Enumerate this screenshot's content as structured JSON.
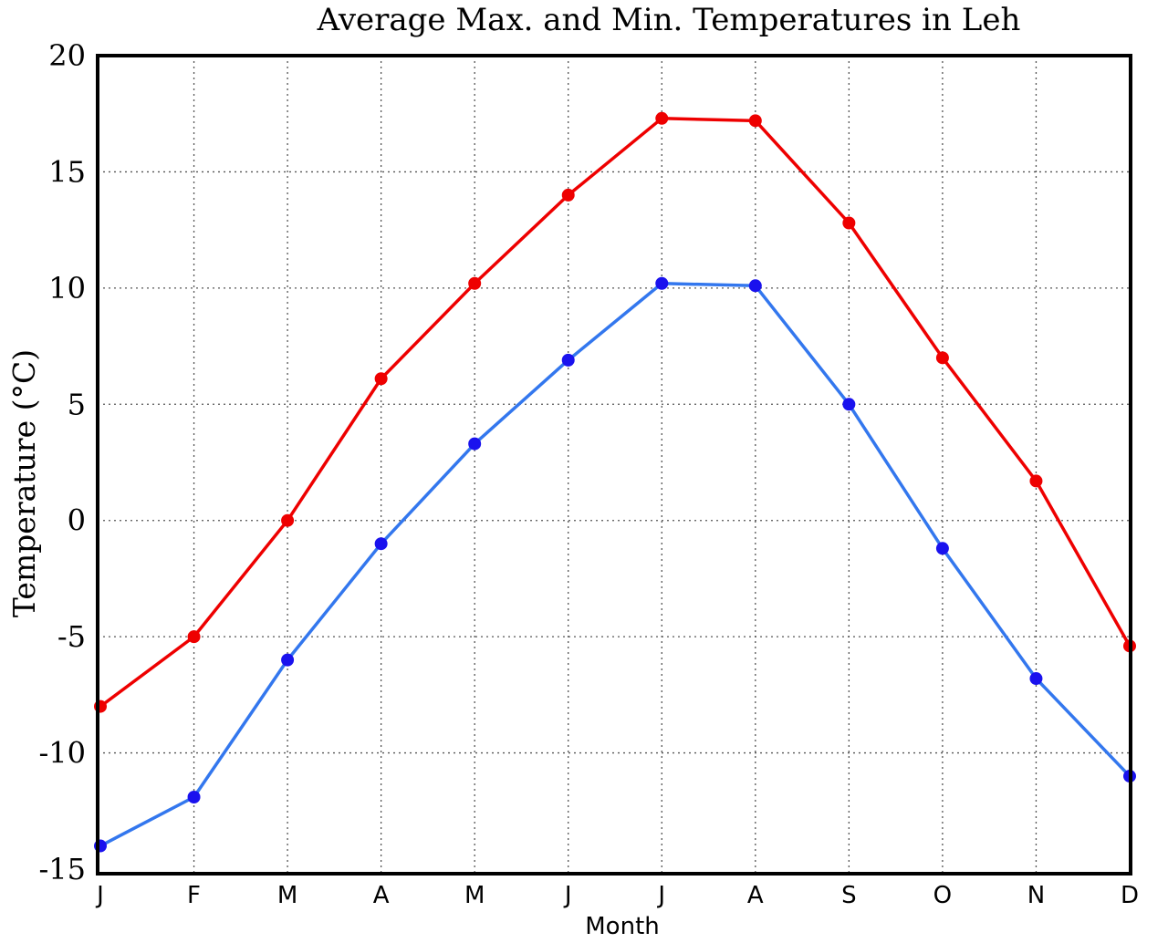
{
  "chart_data": {
    "type": "line",
    "title": "Average Max. and Min. Temperatures in Leh",
    "xlabel": "Month",
    "ylabel": "Temperature (°C)",
    "categories": [
      "J",
      "F",
      "M",
      "A",
      "M",
      "J",
      "J",
      "A",
      "S",
      "O",
      "N",
      "D"
    ],
    "ylim": [
      -15,
      20
    ],
    "yticks": [
      "20",
      "15",
      "10",
      "5",
      "0",
      "-5",
      "-10",
      "-15"
    ],
    "grid": true,
    "series": [
      {
        "color": "#ee0000",
        "marker_color": "#ee0000",
        "values": [
          -8.0,
          -5.0,
          0.0,
          6.1,
          10.2,
          14.0,
          17.3,
          17.2,
          12.8,
          7.0,
          1.7,
          -5.4
        ]
      },
      {
        "color": "#3377ee",
        "marker_color": "#1a12ee",
        "values": [
          -14.0,
          -11.9,
          -6.0,
          -1.0,
          3.3,
          6.9,
          10.2,
          10.1,
          5.0,
          -1.2,
          -6.8,
          -11.0
        ]
      }
    ]
  }
}
